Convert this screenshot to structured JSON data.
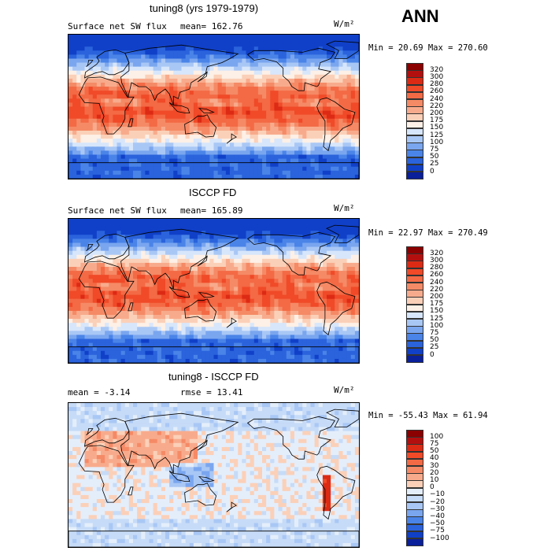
{
  "season": "ANN",
  "panels": [
    {
      "title": "tuning8 (yrs 1979-1979)",
      "left_text": "Surface net SW flux",
      "right_text": "mean= 162.76",
      "units": "W/m²",
      "minmax": "Min =  20.69 Max = 270.60",
      "field": "model",
      "colorbar": {
        "labels": [
          "320",
          "300",
          "280",
          "260",
          "240",
          "220",
          "200",
          "175",
          "150",
          "125",
          "100",
          "75",
          "50",
          "25",
          "0"
        ],
        "colors": [
          "#8b0000",
          "#b40f0f",
          "#dc2a14",
          "#f04a28",
          "#f36a45",
          "#f58a66",
          "#f8ab8c",
          "#fbd0b8",
          "#fdf0e6",
          "#d7e6fb",
          "#a9c7f5",
          "#7aa6ef",
          "#4a84e8",
          "#2a63dc",
          "#1040c8",
          "#0a1f9a"
        ]
      }
    },
    {
      "title": "ISCCP FD",
      "left_text": "Surface net SW flux",
      "right_text": "mean= 165.89",
      "units": "W/m²",
      "minmax": "Min =  22.97 Max = 270.49",
      "field": "obs",
      "colorbar": {
        "labels": [
          "320",
          "300",
          "280",
          "260",
          "240",
          "220",
          "200",
          "175",
          "150",
          "125",
          "100",
          "75",
          "50",
          "25",
          "0"
        ],
        "colors": [
          "#8b0000",
          "#b40f0f",
          "#dc2a14",
          "#f04a28",
          "#f36a45",
          "#f58a66",
          "#f8ab8c",
          "#fbd0b8",
          "#fdf0e6",
          "#d7e6fb",
          "#a9c7f5",
          "#7aa6ef",
          "#4a84e8",
          "#2a63dc",
          "#1040c8",
          "#0a1f9a"
        ]
      }
    },
    {
      "title": "tuning8 - ISCCP FD",
      "left_text": "mean =  -3.14",
      "right_text": "rmse =  13.41",
      "units": "W/m²",
      "minmax": "Min = -55.43 Max =  61.94",
      "field": "diff",
      "colorbar": {
        "labels": [
          "100",
          "75",
          "50",
          "40",
          "30",
          "20",
          "10",
          "0",
          "−10",
          "−20",
          "−30",
          "−40",
          "−50",
          "−75",
          "−100"
        ],
        "colors": [
          "#8b0000",
          "#b40f0f",
          "#dc2a14",
          "#f04a28",
          "#f36a45",
          "#f58a66",
          "#f8ab8c",
          "#fbd0b8",
          "#e4eefb",
          "#c6dbf7",
          "#a9c7f5",
          "#7aa6ef",
          "#4a84e8",
          "#2a63dc",
          "#1040c8",
          "#0a1f9a"
        ]
      }
    }
  ]
}
